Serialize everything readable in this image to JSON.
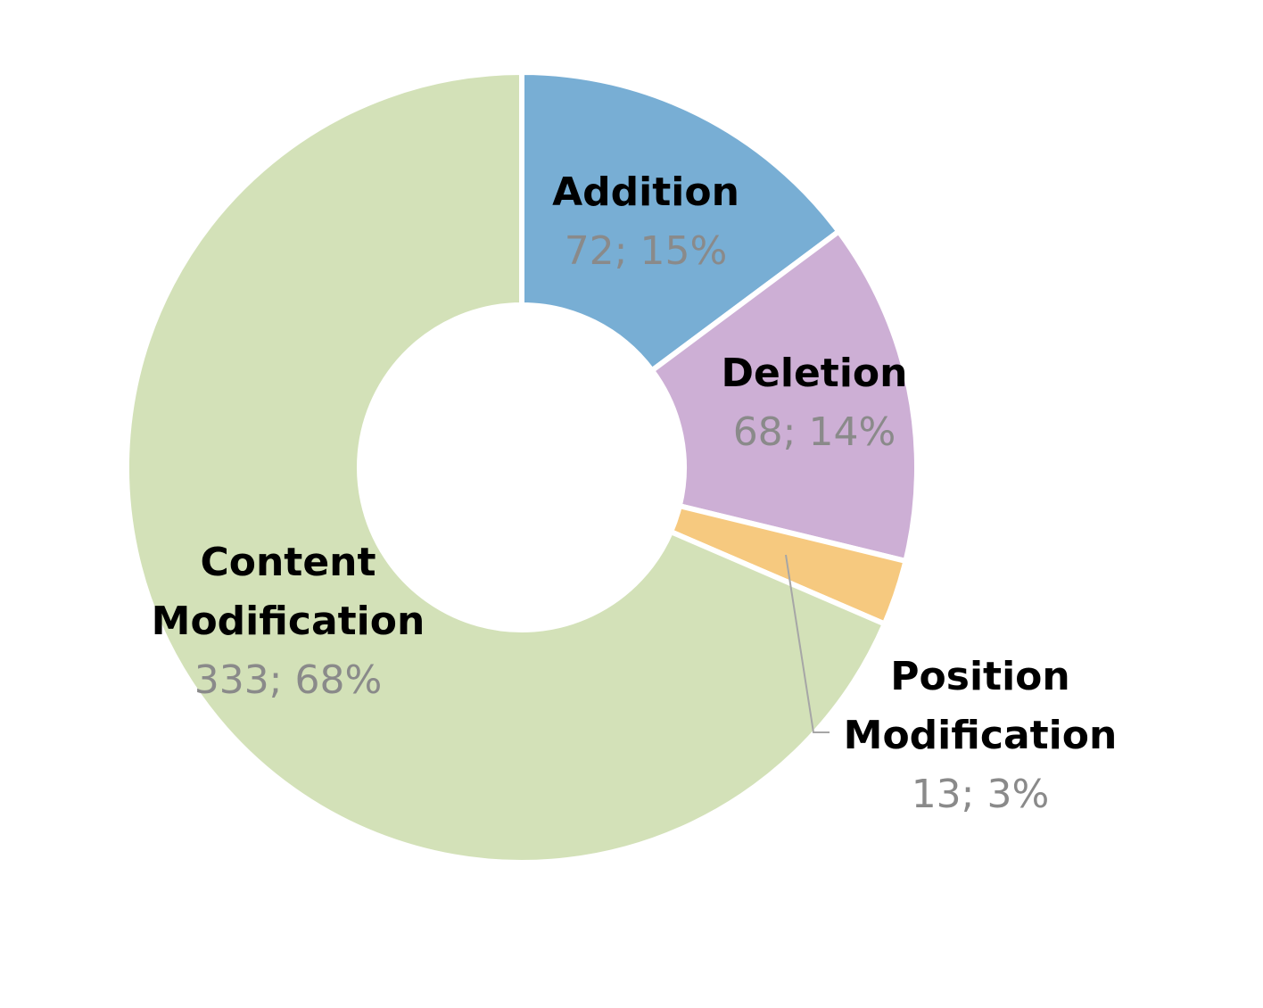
{
  "chart_data": {
    "type": "pie",
    "variant": "donut",
    "title": "",
    "slices": [
      {
        "name": "Addition",
        "value": 72,
        "percent_label": "15%",
        "value_label": "72; 15%",
        "color": "#78AED4",
        "label_lines": [
          "Addition"
        ]
      },
      {
        "name": "Deletion",
        "value": 68,
        "percent_label": "14%",
        "value_label": "68; 14%",
        "color": "#CDAFD5",
        "label_lines": [
          "Deletion"
        ]
      },
      {
        "name": "Position Modification",
        "value": 13,
        "percent_label": "3%",
        "value_label": "13; 3%",
        "color": "#F6C97F",
        "label_lines": [
          "Position",
          "Modification"
        ]
      },
      {
        "name": "Content Modification",
        "value": 333,
        "percent_label": "68%",
        "value_label": "333; 68%",
        "color": "#D3E1B8",
        "label_lines": [
          "Content",
          "Modification"
        ]
      }
    ],
    "start_angle": "12 o'clock",
    "direction": "clockwise",
    "label_name_color": "#000000",
    "label_value_color": "#8A8A8A",
    "leader_line_color": "#A6A6A6",
    "legend": "none"
  }
}
